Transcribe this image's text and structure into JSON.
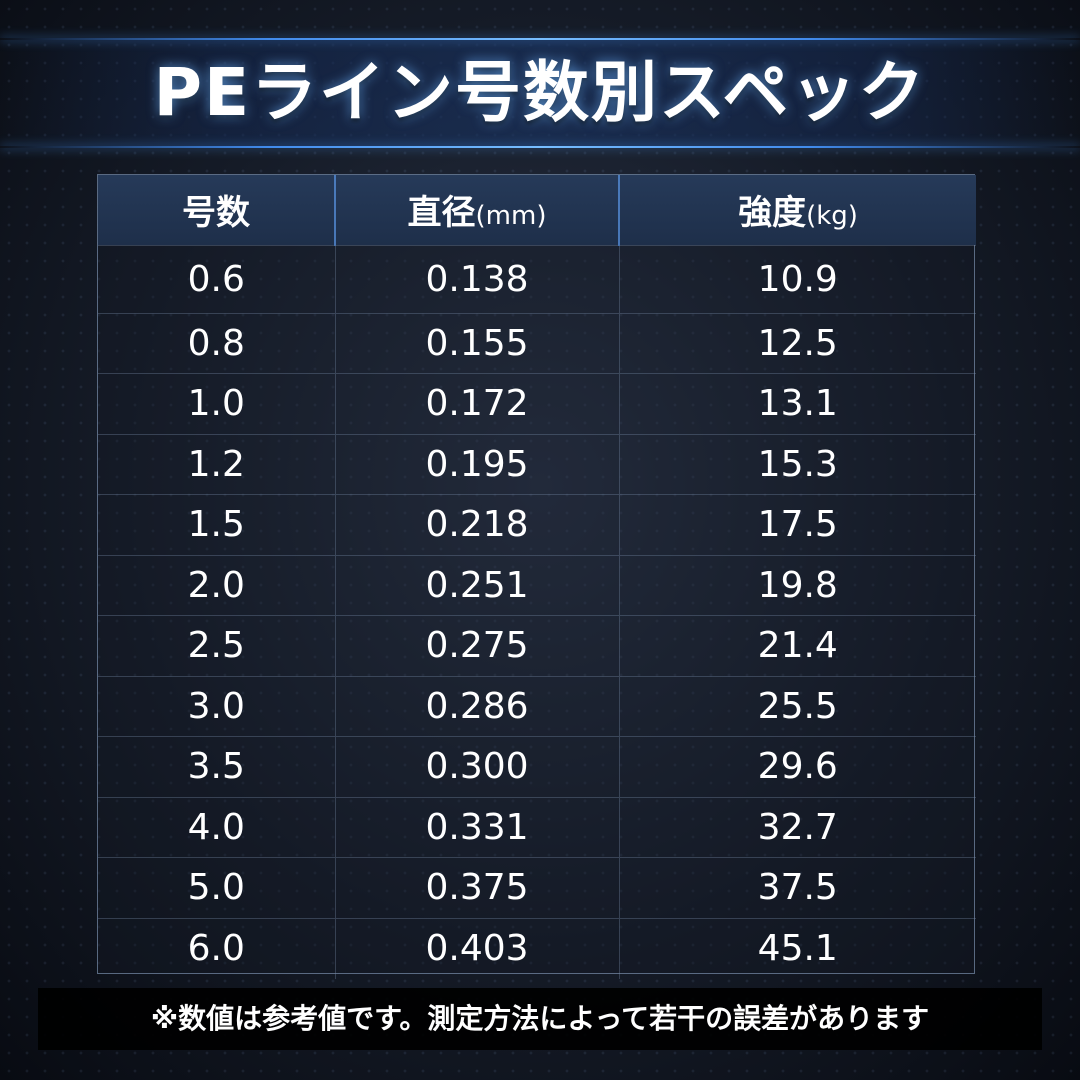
{
  "title": "PEライン号数別スペック",
  "table": {
    "headers": [
      {
        "label": "号数",
        "unit": ""
      },
      {
        "label": "直径",
        "unit": "(mm)"
      },
      {
        "label": "強度",
        "unit": "(kg)"
      }
    ],
    "rows": [
      [
        "0.6",
        "0.138",
        "10.9"
      ],
      [
        "0.8",
        "0.155",
        "12.5"
      ],
      [
        "1.0",
        "0.172",
        "13.1"
      ],
      [
        "1.2",
        "0.195",
        "15.3"
      ],
      [
        "1.5",
        "0.218",
        "17.5"
      ],
      [
        "2.0",
        "0.251",
        "19.8"
      ],
      [
        "2.5",
        "0.275",
        "21.4"
      ],
      [
        "3.0",
        "0.286",
        "25.5"
      ],
      [
        "3.5",
        "0.300",
        "29.6"
      ],
      [
        "4.0",
        "0.331",
        "32.7"
      ],
      [
        "5.0",
        "0.375",
        "37.5"
      ],
      [
        "6.0",
        "0.403",
        "45.1"
      ]
    ]
  },
  "note": "※数値は参考値です。測定方法によって若干の誤差があります",
  "colors": {
    "accent": "#4a9cff",
    "header_bg": "#243757",
    "background": "#151b27"
  }
}
